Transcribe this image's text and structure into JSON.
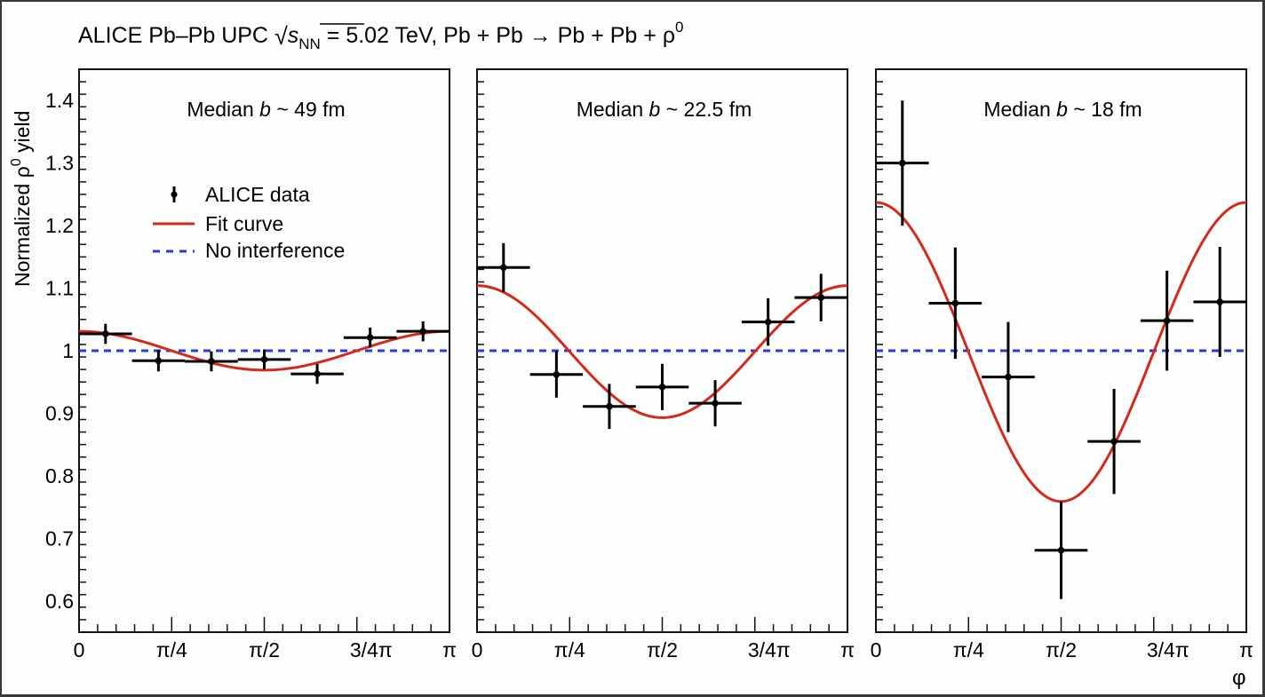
{
  "title": {
    "prefix": "ALICE Pb–Pb UPC ",
    "sqrt_s": "s",
    "sqrt_sub": "NN",
    "suffix": " = 5.02 TeV, Pb + Pb → Pb + Pb + ρ",
    "sup": "0"
  },
  "y_axis_label": {
    "main": "Normalized ρ",
    "sup": "0",
    "tail": " yield"
  },
  "x_axis_label": "φ",
  "legend": {
    "placement": "top-left of first panel",
    "entries": [
      {
        "label": "ALICE data",
        "style": "marker-with-errorbar",
        "color": "#000000"
      },
      {
        "label": "Fit curve",
        "style": "solid-line",
        "color": "#d42a1c"
      },
      {
        "label": "No interference",
        "style": "dashed-line",
        "color": "#2a37e0"
      }
    ]
  },
  "colors": {
    "data": "#000000",
    "fit": "#d42a1c",
    "no_interference": "#2a37e0",
    "frame": "#3a3a3a"
  },
  "chart_data": [
    {
      "type": "scatter",
      "panel_title": {
        "prefix": "Median ",
        "italic": "b",
        "suffix": " ~ 49 fm"
      },
      "xlabel": "φ",
      "ylabel": "Normalized ρ⁰ yield",
      "xlim": [
        0,
        3.14159
      ],
      "ylim": [
        0.55,
        1.45
      ],
      "x_tick_labels": [
        "0",
        "π/4",
        "π/2",
        "3/4π",
        "π"
      ],
      "y_tick_labels": [
        "0.6",
        "0.7",
        "0.8",
        "0.9",
        "1",
        "1.1",
        "1.2",
        "1.3",
        "1.4"
      ],
      "grid": false,
      "series": [
        {
          "name": "ALICE data",
          "x_bin_centers": [
            0.2244,
            0.6732,
            1.122,
            1.5708,
            2.0196,
            2.4684,
            2.9172
          ],
          "x_half_width": 0.2244,
          "y": [
            1.027,
            0.984,
            0.983,
            0.986,
            0.963,
            1.021,
            1.031
          ],
          "y_err": [
            0.016,
            0.017,
            0.016,
            0.016,
            0.016,
            0.016,
            0.016
          ]
        },
        {
          "name": "Fit curve",
          "function": "c0*(1 + a*cos(2*phi))",
          "c0": 1.0,
          "a": 0.031
        },
        {
          "name": "No interference",
          "value": 1.0
        }
      ]
    },
    {
      "type": "scatter",
      "panel_title": {
        "prefix": "Median ",
        "italic": "b",
        "suffix": " ~ 22.5 fm"
      },
      "xlabel": "φ",
      "xlim": [
        0,
        3.14159
      ],
      "ylim": [
        0.55,
        1.45
      ],
      "x_tick_labels": [
        "0",
        "π/4",
        "π/2",
        "3/4π",
        "π"
      ],
      "grid": false,
      "series": [
        {
          "name": "ALICE data",
          "x_bin_centers": [
            0.2244,
            0.6732,
            1.122,
            1.5708,
            2.0196,
            2.4684,
            2.9172
          ],
          "x_half_width": 0.2244,
          "y": [
            1.133,
            0.962,
            0.911,
            0.942,
            0.916,
            1.046,
            1.085
          ],
          "y_err": [
            0.039,
            0.037,
            0.036,
            0.037,
            0.037,
            0.038,
            0.038
          ]
        },
        {
          "name": "Fit curve",
          "function": "c0*(1 + a*cos(2*phi))",
          "c0": 0.9985,
          "a": 0.1057
        },
        {
          "name": "No interference",
          "value": 1.0
        }
      ]
    },
    {
      "type": "scatter",
      "panel_title": {
        "prefix": "Median ",
        "italic": "b",
        "suffix": " ~ 18 fm"
      },
      "xlabel": "φ",
      "xlim": [
        0,
        3.14159
      ],
      "ylim": [
        0.55,
        1.45
      ],
      "x_tick_labels": [
        "0",
        "π/4",
        "π/2",
        "3/4π",
        "π"
      ],
      "grid": false,
      "series": [
        {
          "name": "ALICE data",
          "x_bin_centers": [
            0.2244,
            0.6732,
            1.122,
            1.5708,
            2.0196,
            2.4684,
            2.9172
          ],
          "x_half_width": 0.2244,
          "y": [
            1.3,
            1.076,
            0.958,
            0.681,
            0.855,
            1.048,
            1.078
          ],
          "y_err": [
            0.1,
            0.089,
            0.088,
            0.078,
            0.084,
            0.08,
            0.088
          ]
        },
        {
          "name": "Fit curve",
          "function": "c0*(1 + a*cos(2*phi))",
          "c0": 0.998,
          "a": 0.2395
        },
        {
          "name": "No interference",
          "value": 1.0
        }
      ]
    }
  ]
}
